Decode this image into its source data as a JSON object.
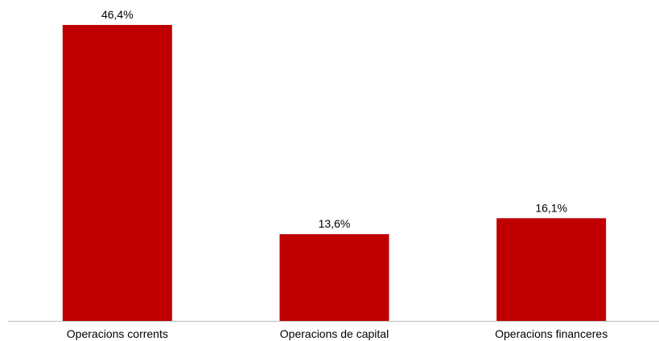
{
  "chart_data": {
    "type": "bar",
    "categories": [
      "Operacions corrents",
      "Operacions de capital",
      "Operacions financeres"
    ],
    "values": [
      46.4,
      13.6,
      16.1
    ],
    "value_labels": [
      "46,4%",
      "13,6%",
      "16,1%"
    ],
    "unit": "%",
    "title": "",
    "xlabel": "",
    "ylabel": "",
    "ylim": [
      0,
      46.4
    ],
    "grid": false,
    "legend": "none",
    "colors": {
      "bar": "#C00000",
      "axis": "#BFBFBF",
      "text": "#000000"
    }
  }
}
